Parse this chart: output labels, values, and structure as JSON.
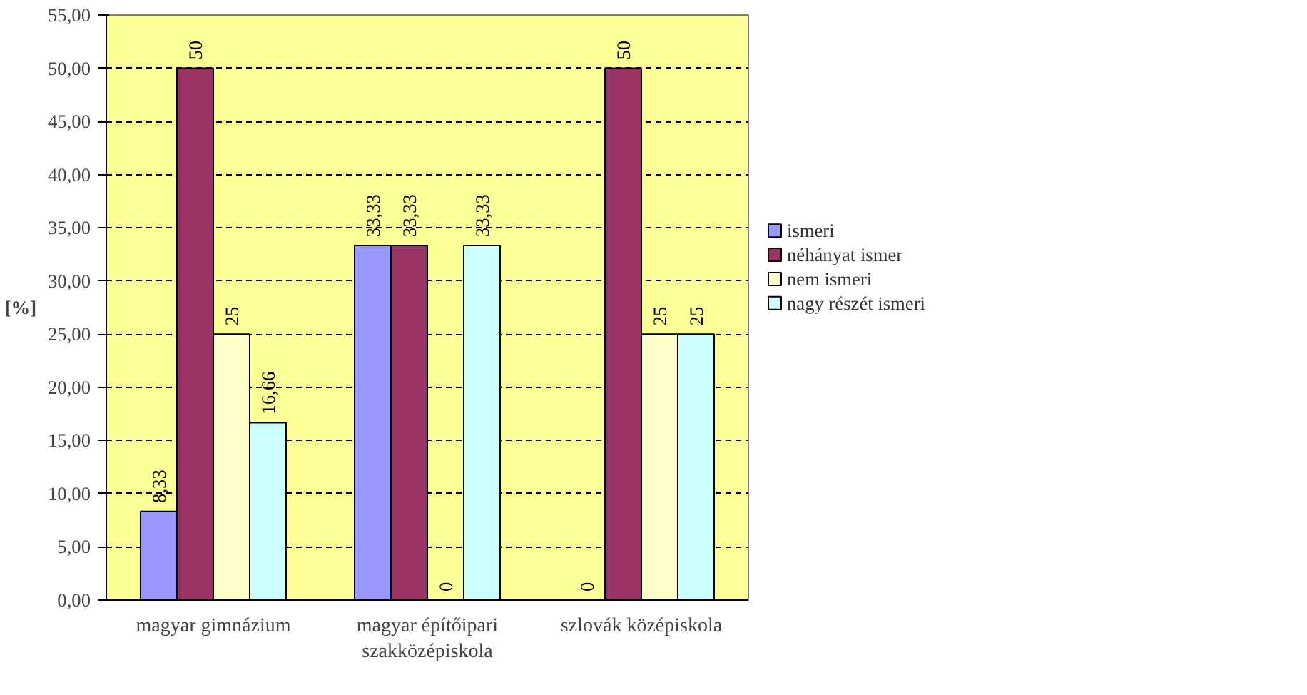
{
  "chart_data": {
    "type": "bar",
    "ylabel": "[%]",
    "categories": [
      "magyar gimnázium",
      "magyar építőipari szakközépiskola",
      "szlovák középiskola"
    ],
    "series": [
      {
        "name": "ismeri",
        "color": "#9999ff",
        "values": [
          8.33,
          33.33,
          0
        ],
        "value_labels": [
          "8,33",
          "33,33",
          "0"
        ]
      },
      {
        "name": "néhányat ismer",
        "color": "#993366",
        "values": [
          50,
          33.33,
          50
        ],
        "value_labels": [
          "50",
          "33,33",
          "50"
        ]
      },
      {
        "name": "nem ismeri",
        "color": "#ffffcc",
        "values": [
          25,
          0,
          25
        ],
        "value_labels": [
          "25",
          "0",
          "25"
        ]
      },
      {
        "name": "nagy részét ismeri",
        "color": "#ccffff",
        "values": [
          16.66,
          33.33,
          25
        ],
        "value_labels": [
          "16,66",
          "33,33",
          "25"
        ]
      }
    ],
    "ylim": [
      0,
      55
    ],
    "yticks": [
      {
        "value": 0,
        "label": "0,00"
      },
      {
        "value": 5,
        "label": "5,00"
      },
      {
        "value": 10,
        "label": "10,00"
      },
      {
        "value": 15,
        "label": "15,00"
      },
      {
        "value": 20,
        "label": "20,00"
      },
      {
        "value": 25,
        "label": "25,00"
      },
      {
        "value": 30,
        "label": "30,00"
      },
      {
        "value": 35,
        "label": "35,00"
      },
      {
        "value": 40,
        "label": "40,00"
      },
      {
        "value": 45,
        "label": "45,00"
      },
      {
        "value": 50,
        "label": "50,00"
      },
      {
        "value": 55,
        "label": "55,00"
      }
    ],
    "grid": "y",
    "legend": "right"
  }
}
